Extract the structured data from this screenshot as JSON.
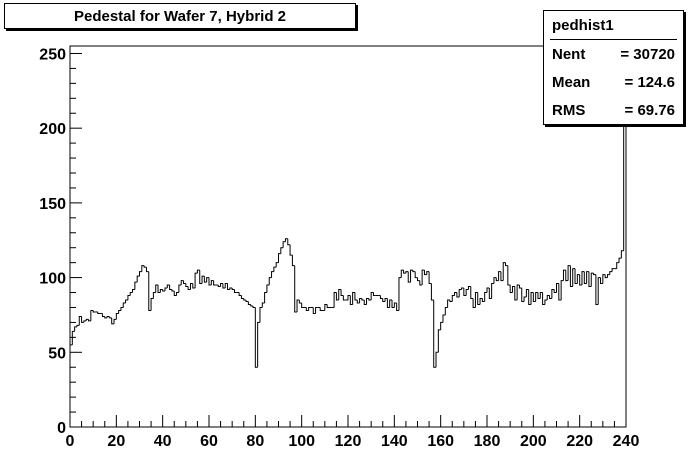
{
  "title": "Pedestal for Wafer 7, Hybrid 2",
  "stats": {
    "name": "pedhist1",
    "rows": [
      {
        "label": "Nent",
        "value": "= 30720"
      },
      {
        "label": "Mean",
        "value": "=  124.6"
      },
      {
        "label": "RMS",
        "value": "=  69.76"
      }
    ]
  },
  "chart_data": {
    "type": "histogram",
    "title": "Pedestal for Wafer 7, Hybrid 2",
    "xlabel": "",
    "ylabel": "",
    "xlim": [
      0,
      240
    ],
    "ylim": [
      0,
      255
    ],
    "x_ticks": [
      0,
      20,
      40,
      60,
      80,
      100,
      120,
      140,
      160,
      180,
      200,
      220,
      240
    ],
    "y_ticks": [
      0,
      50,
      100,
      150,
      200,
      250
    ],
    "bin_width": 1,
    "grid": false,
    "values": [
      55,
      64,
      67,
      68,
      74,
      70,
      71,
      72,
      71,
      78,
      77,
      77,
      76,
      76,
      74,
      73,
      74,
      73,
      69,
      72,
      76,
      78,
      80,
      83,
      85,
      88,
      90,
      92,
      97,
      101,
      104,
      108,
      107,
      104,
      78,
      86,
      90,
      95,
      90,
      92,
      91,
      93,
      95,
      92,
      91,
      88,
      90,
      95,
      98,
      96,
      94,
      92,
      96,
      93,
      103,
      105,
      96,
      101,
      97,
      100,
      95,
      98,
      95,
      95,
      94,
      96,
      93,
      96,
      92,
      93,
      92,
      90,
      90,
      88,
      86,
      85,
      84,
      82,
      81,
      80,
      40,
      70,
      80,
      83,
      90,
      95,
      100,
      104,
      107,
      110,
      116,
      120,
      124,
      126,
      122,
      115,
      108,
      77,
      85,
      83,
      80,
      80,
      78,
      80,
      80,
      76,
      80,
      80,
      78,
      78,
      82,
      80,
      80,
      80,
      90,
      85,
      92,
      88,
      85,
      85,
      88,
      82,
      90,
      85,
      83,
      86,
      85,
      82,
      86,
      85,
      90,
      88,
      88,
      88,
      86,
      84,
      86,
      80,
      85,
      80,
      83,
      78,
      100,
      105,
      103,
      104,
      97,
      105,
      104,
      100,
      98,
      95,
      105,
      102,
      104,
      96,
      85,
      40,
      50,
      65,
      70,
      75,
      80,
      85,
      84,
      88,
      90,
      87,
      92,
      93,
      88,
      92,
      94,
      86,
      80,
      90,
      82,
      86,
      84,
      90,
      93,
      86,
      96,
      100,
      98,
      104,
      98,
      110,
      108,
      95,
      90,
      94,
      85,
      95,
      93,
      84,
      87,
      92,
      82,
      90,
      84,
      90,
      86,
      90,
      82,
      85,
      88,
      86,
      92,
      90,
      96,
      85,
      98,
      105,
      98,
      108,
      94,
      106,
      96,
      102,
      95,
      104,
      96,
      104,
      94,
      103,
      102,
      82,
      100,
      96,
      102,
      100,
      102,
      104,
      106,
      106,
      110,
      113,
      118,
      250
    ]
  }
}
